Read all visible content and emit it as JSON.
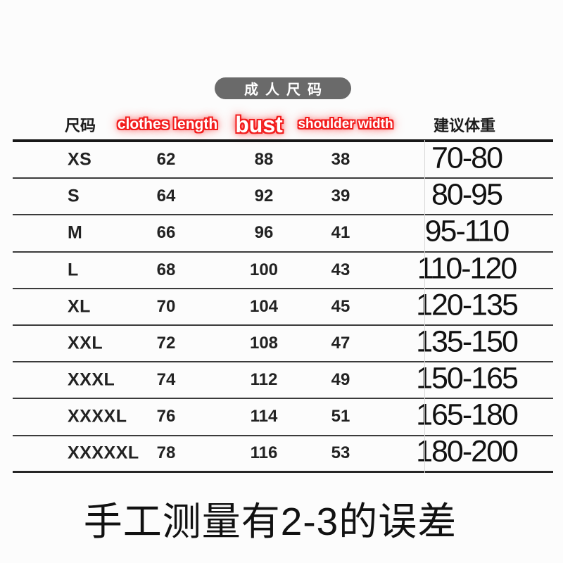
{
  "badge": {
    "label": "成人尺码"
  },
  "table": {
    "headers": {
      "size": "尺码",
      "length": "clothes length",
      "bust": "bust",
      "shoulder": "shoulder width",
      "weight": "建议体重"
    },
    "rows": [
      {
        "size": "XS",
        "length": "62",
        "bust": "88",
        "shoulder": "38",
        "weight": "70-80"
      },
      {
        "size": "S",
        "length": "64",
        "bust": "92",
        "shoulder": "39",
        "weight": "80-95"
      },
      {
        "size": "M",
        "length": "66",
        "bust": "96",
        "shoulder": "41",
        "weight": "95-110"
      },
      {
        "size": "L",
        "length": "68",
        "bust": "100",
        "shoulder": "43",
        "weight": "110-120"
      },
      {
        "size": "XL",
        "length": "70",
        "bust": "104",
        "shoulder": "45",
        "weight": "120-135"
      },
      {
        "size": "XXL",
        "length": "72",
        "bust": "108",
        "shoulder": "47",
        "weight": "135-150"
      },
      {
        "size": "XXXL",
        "length": "74",
        "bust": "112",
        "shoulder": "49",
        "weight": "150-165"
      },
      {
        "size": "XXXXL",
        "length": "76",
        "bust": "114",
        "shoulder": "51",
        "weight": "165-180"
      },
      {
        "size": "XXXXXL",
        "length": "78",
        "bust": "116",
        "shoulder": "53",
        "weight": "180-200"
      }
    ]
  },
  "footer": {
    "note": "手工测量有2-3的误差"
  },
  "colors": {
    "accent_red": "#f21d1d",
    "badge_gray": "#6a6a6a",
    "line_dark": "#3b3b3b",
    "text": "#1a1a1a"
  }
}
